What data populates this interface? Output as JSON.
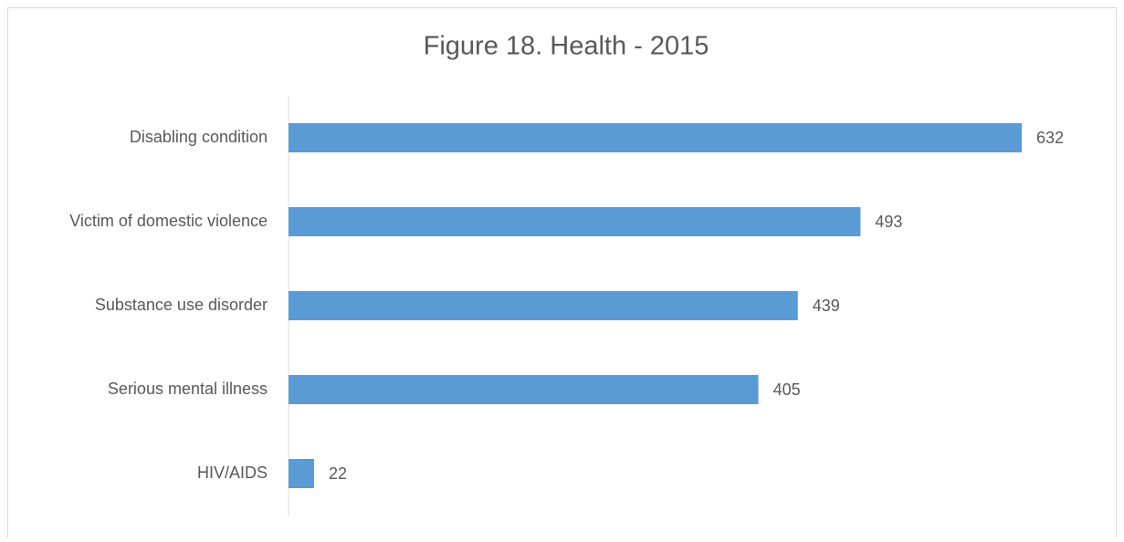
{
  "chart_data": {
    "type": "bar",
    "orientation": "horizontal",
    "title": "Figure 18. Health - 2015",
    "categories": [
      "Disabling condition",
      "Victim of domestic violence",
      "Substance use disorder",
      "Serious mental illness",
      "HIV/AIDS"
    ],
    "values": [
      632,
      493,
      439,
      405,
      22
    ],
    "color": "#5b9bd5"
  }
}
